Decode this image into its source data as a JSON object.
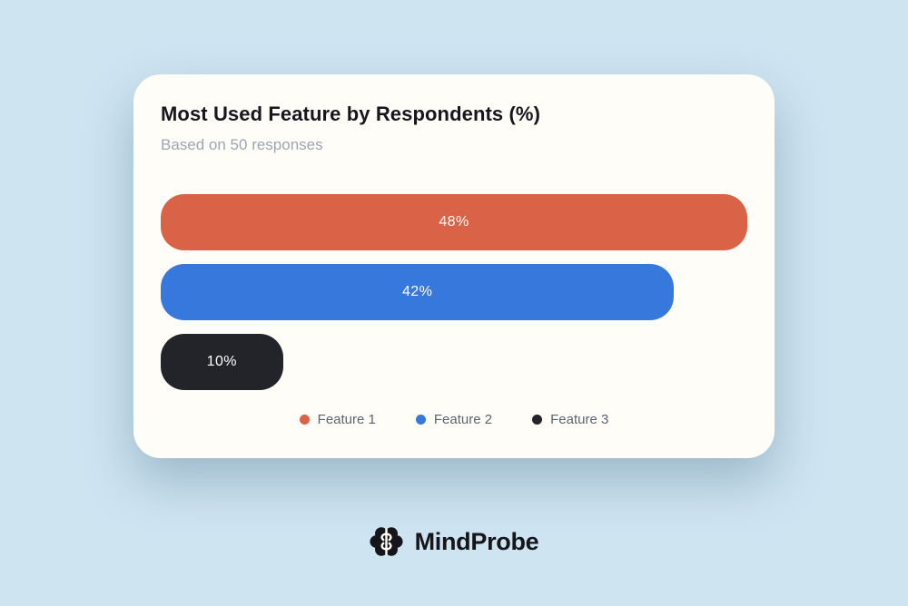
{
  "page": {
    "background_color": "#CEE4F1"
  },
  "card": {
    "background_color": "#FFFDF7"
  },
  "chart_data": {
    "type": "bar",
    "orientation": "horizontal",
    "title": "Most Used Feature by Respondents (%)",
    "subtitle": "Based on 50 responses",
    "categories": [
      "Feature 1",
      "Feature 2",
      "Feature 3"
    ],
    "values": [
      48,
      42,
      10
    ],
    "unit": "%",
    "value_labels": [
      "48%",
      "42%",
      "10%"
    ],
    "bar_colors": [
      "#D96247",
      "#3678DB",
      "#22242A"
    ],
    "value_label_color": "#FFFFFF",
    "bar_scaling": "relative_to_max_value",
    "grid": "off",
    "axes": "none",
    "legend_position": "bottom-center",
    "legend": [
      {
        "label": "Feature 1",
        "color": "#D96247"
      },
      {
        "label": "Feature 2",
        "color": "#3678DB"
      },
      {
        "label": "Feature 3",
        "color": "#22242A"
      }
    ],
    "title_color": "#16161C",
    "subtitle_color": "#9BA6B2",
    "legend_text_color": "#5B6470"
  },
  "footer": {
    "brand": "MindProbe",
    "icon": "brain-icon",
    "color": "#15151A"
  }
}
